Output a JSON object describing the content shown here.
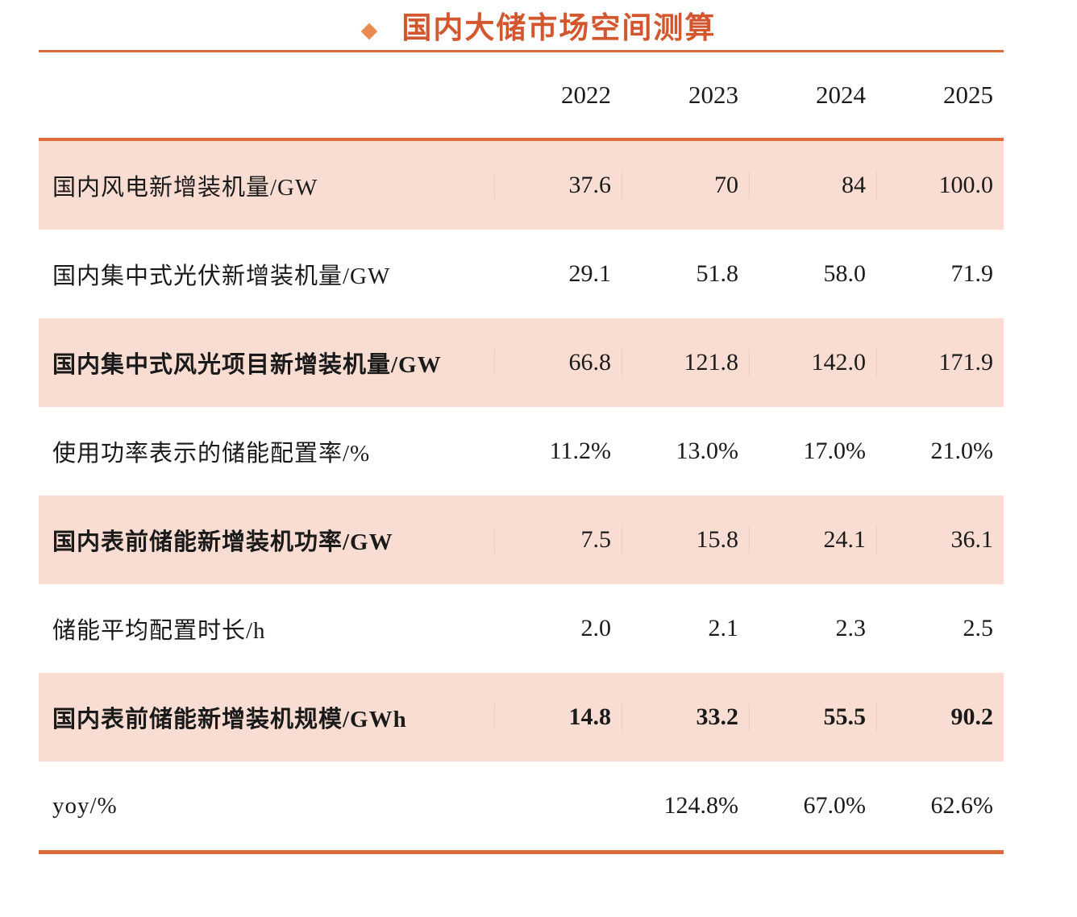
{
  "title": {
    "bullet": "◆",
    "text": "国内大储市场空间测算"
  },
  "colors": {
    "title_text": "#D2572F",
    "diamond_bullet": "#E98A50",
    "table_rule": "#DC6B3C",
    "shaded_row_background": "#F9DDD2"
  },
  "table": {
    "columns": [
      "2022",
      "2023",
      "2024",
      "2025"
    ],
    "rows": [
      {
        "label": "国内风电新增装机量/GW",
        "values": [
          "37.6",
          "70",
          "84",
          "100.0"
        ]
      },
      {
        "label": "国内集中式光伏新增装机量/GW",
        "values": [
          "29.1",
          "51.8",
          "58.0",
          "71.9"
        ]
      },
      {
        "label": "国内集中式风光项目新增装机量/GW",
        "values": [
          "66.8",
          "121.8",
          "142.0",
          "171.9"
        ]
      },
      {
        "label": "使用功率表示的储能配置率/%",
        "values": [
          "11.2%",
          "13.0%",
          "17.0%",
          "21.0%"
        ]
      },
      {
        "label": "国内表前储能新增装机功率/GW",
        "values": [
          "7.5",
          "15.8",
          "24.1",
          "36.1"
        ]
      },
      {
        "label": "储能平均配置时长/h",
        "values": [
          "2.0",
          "2.1",
          "2.3",
          "2.5"
        ]
      },
      {
        "label": "国内表前储能新增装机规模/GWh",
        "values": [
          "14.8",
          "33.2",
          "55.5",
          "90.2"
        ]
      },
      {
        "label": "yoy/%",
        "values": [
          "",
          "124.8%",
          "67.0%",
          "62.6%"
        ]
      }
    ]
  }
}
